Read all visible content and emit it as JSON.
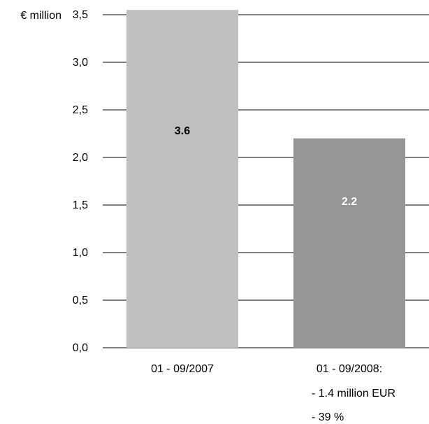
{
  "chart_data": {
    "type": "bar",
    "unit_label": "€ million",
    "categories": [
      "01 - 09/2007",
      "01 - 09/2008:"
    ],
    "category_notes": [
      [],
      [
        "- 1.4 million EUR",
        "- 39 %"
      ]
    ],
    "values": [
      3.55,
      2.2
    ],
    "data_labels": [
      "3.6",
      "2.2"
    ],
    "y_ticks": [
      "0,0",
      "0,5",
      "1,0",
      "1,5",
      "2,0",
      "2,5",
      "3,0",
      "3,5"
    ],
    "ylim": [
      0,
      3.5
    ],
    "grid": true,
    "colors": {
      "bar_2007": "#bfbfbf",
      "bar_2008": "#959595",
      "label_2007": "#000000",
      "label_2008": "#ffffff",
      "grid": "#000000"
    }
  }
}
